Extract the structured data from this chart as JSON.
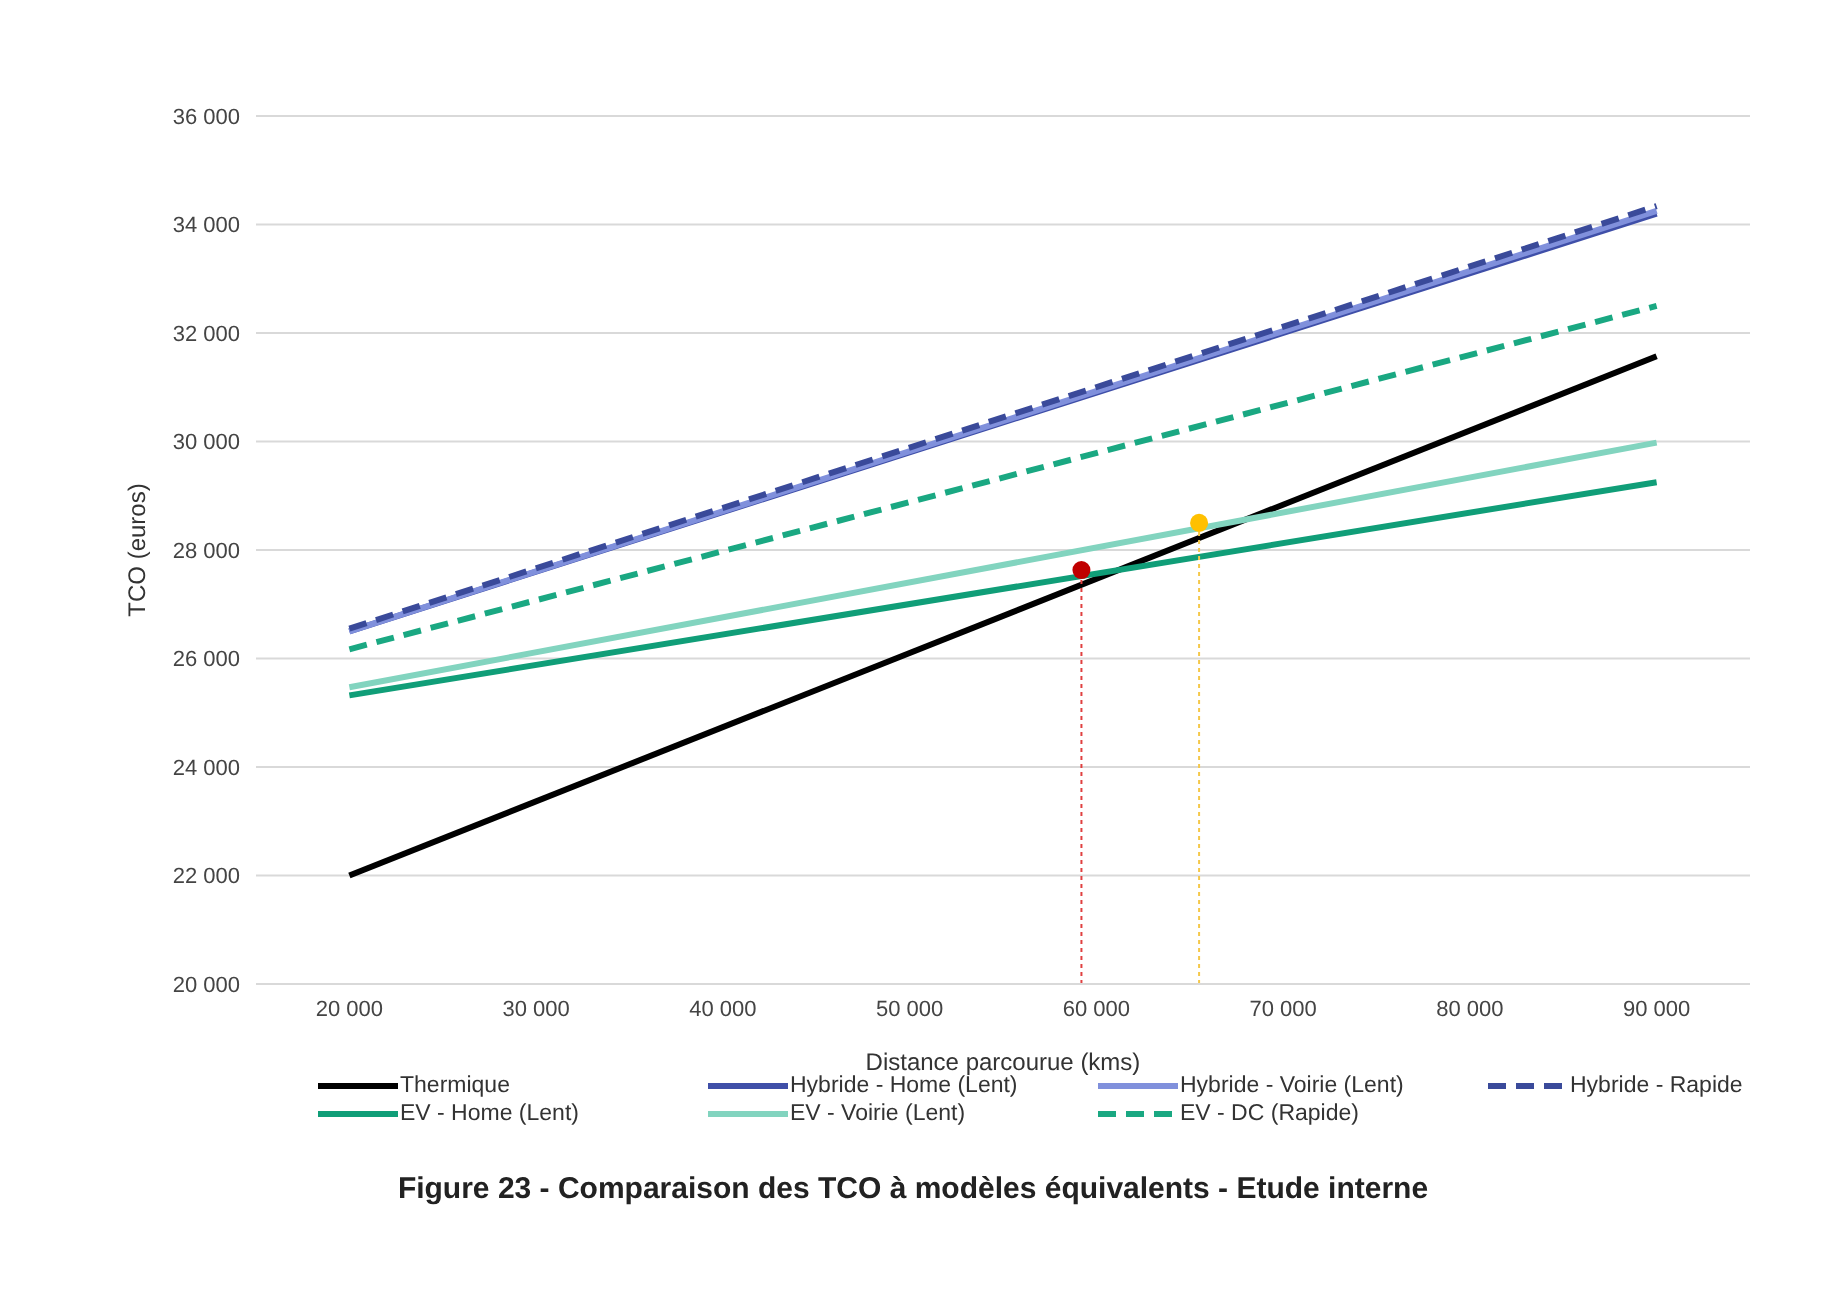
{
  "chart_data": {
    "type": "line",
    "title": "Figure 23 - Comparaison des TCO à modèles équivalents - Etude interne",
    "xlabel": "Distance parcourue (kms)",
    "ylabel": "TCO (euros)",
    "xlim": [
      15000,
      95000
    ],
    "xticks": [
      {
        "value": 20000,
        "label": "20 000"
      },
      {
        "value": 30000,
        "label": "30 000"
      },
      {
        "value": 40000,
        "label": "40 000"
      },
      {
        "value": 50000,
        "label": "50 000"
      },
      {
        "value": 60000,
        "label": "60 000"
      },
      {
        "value": 70000,
        "label": "70 000"
      },
      {
        "value": 80000,
        "label": "80 000"
      },
      {
        "value": 90000,
        "label": "90 000"
      }
    ],
    "ylim": [
      20000,
      36000
    ],
    "yticks": [
      {
        "value": 20000,
        "label": "20 000"
      },
      {
        "value": 22000,
        "label": "22 000"
      },
      {
        "value": 24000,
        "label": "24 000"
      },
      {
        "value": 26000,
        "label": "26 000"
      },
      {
        "value": 28000,
        "label": "28 000"
      },
      {
        "value": 30000,
        "label": "30 000"
      },
      {
        "value": 32000,
        "label": "32 000"
      },
      {
        "value": 34000,
        "label": "34 000"
      },
      {
        "value": 36000,
        "label": "36 000"
      }
    ],
    "grid": "y",
    "legend": "bottom",
    "marker": "none",
    "line_style": "solid",
    "series": [
      {
        "name": "Thermique",
        "color": "#000000",
        "x": [
          20000,
          90000
        ],
        "values": [
          22000,
          31570
        ]
      },
      {
        "name": "Hybride - Home (Lent)",
        "color": "#3f4fa8",
        "x": [
          20000,
          90000
        ],
        "values": [
          26500,
          34200
        ]
      },
      {
        "name": "Hybride - Voirie (Lent)",
        "color": "#8090dc",
        "x": [
          20000,
          90000
        ],
        "values": [
          26500,
          34250
        ]
      },
      {
        "name": "Hybride - Rapide",
        "color": "#3a4a9a",
        "line_style": "dashed",
        "x": [
          20000,
          90000
        ],
        "values": [
          26550,
          34340
        ]
      },
      {
        "name": "EV - Home (Lent)",
        "color": "#109e78",
        "x": [
          20000,
          90000
        ],
        "values": [
          25320,
          29250
        ]
      },
      {
        "name": "EV - Voirie (Lent)",
        "color": "#82d4bf",
        "x": [
          20000,
          90000
        ],
        "values": [
          25470,
          29980
        ]
      },
      {
        "name": "EV - DC (Rapide)",
        "color": "#1aa882",
        "line_style": "dashed",
        "x": [
          20000,
          90000
        ],
        "values": [
          26170,
          32500
        ]
      },
      {
        "color": "#e04040",
        "line_style": "dotted",
        "x": [
          59200,
          59200
        ],
        "values": [
          20000,
          27630
        ]
      },
      {
        "color": "#f5c84a",
        "line_style": "dotted",
        "x": [
          65500,
          65500
        ],
        "values": [
          20000,
          28500
        ]
      },
      {
        "type": "scatter",
        "marker": "circle",
        "color": "#c00000",
        "x": [
          59200
        ],
        "values": [
          27630
        ]
      },
      {
        "type": "scatter",
        "marker": "circle",
        "color": "#ffc000",
        "x": [
          65500
        ],
        "values": [
          28500
        ]
      }
    ]
  }
}
